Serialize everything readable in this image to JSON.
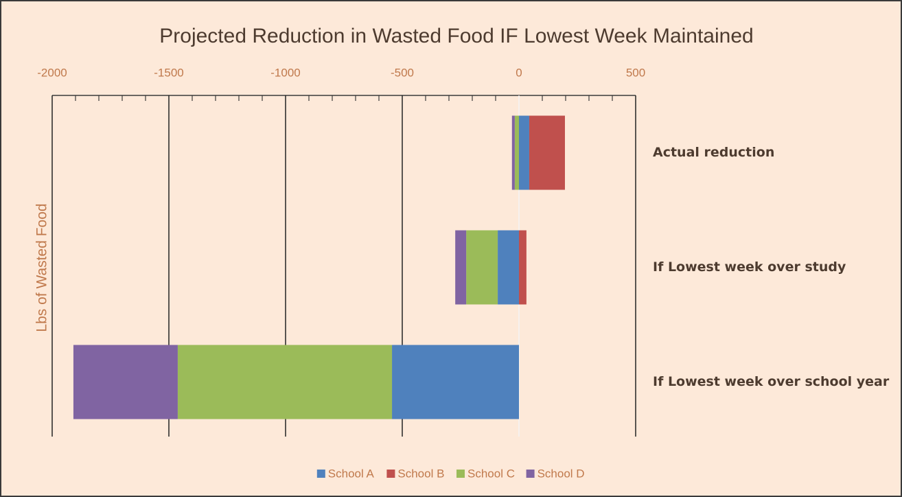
{
  "chart_data": {
    "type": "stacked-barh",
    "title": "Projected Reduction in Wasted Food IF Lowest Week Maintained",
    "y_axis_label": "Lbs of Wasted Food",
    "categories": [
      "Actual reduction",
      "If Lowest week over study",
      "If Lowest week over school year"
    ],
    "series": [
      {
        "name": "School A",
        "color": "#4f81bd",
        "values": [
          44,
          -91,
          -544
        ]
      },
      {
        "name": "School B",
        "color": "#c0504d",
        "values": [
          153,
          32,
          0
        ]
      },
      {
        "name": "School C",
        "color": "#9bbb59",
        "values": [
          -18,
          -135,
          -918
        ]
      },
      {
        "name": "School D",
        "color": "#8064a2",
        "values": [
          -12,
          -47,
          -447
        ]
      }
    ],
    "xlim": [
      -2000,
      500
    ],
    "xticks": [
      -2000,
      -1500,
      -1000,
      -500,
      0,
      500
    ],
    "grid": true,
    "legend": "bottom"
  }
}
